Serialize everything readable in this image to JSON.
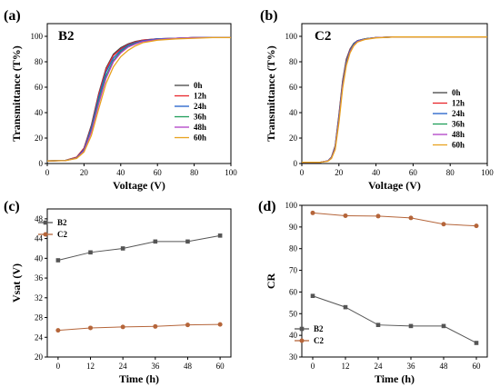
{
  "chart_data": [
    {
      "type": "line",
      "panel_label": "(a)",
      "title": "B2",
      "xlabel": "Voltage (V)",
      "ylabel": "Transmittance (T%)",
      "xlim": [
        0,
        100
      ],
      "ylim": [
        0,
        110
      ],
      "xticks": [
        0,
        20,
        40,
        60,
        80,
        100
      ],
      "yticks": [
        0,
        20,
        40,
        60,
        80,
        100
      ],
      "legend_position": "center-right",
      "series": [
        {
          "name": "0h",
          "color": "#444444",
          "x": [
            0,
            10,
            16,
            20,
            24,
            28,
            32,
            36,
            40,
            44,
            48,
            52,
            60,
            70,
            80,
            90,
            100
          ],
          "y": [
            2,
            2.5,
            5,
            12,
            30,
            55,
            75,
            86,
            91,
            94,
            96,
            97,
            98,
            98.5,
            99,
            99,
            99
          ]
        },
        {
          "name": "12h",
          "color": "#e8262b",
          "x": [
            0,
            10,
            16,
            20,
            24,
            28,
            32,
            36,
            40,
            44,
            48,
            52,
            60,
            70,
            80,
            90,
            100
          ],
          "y": [
            2,
            2.5,
            5,
            12,
            29,
            54,
            74,
            85,
            90,
            93.5,
            95.5,
            97,
            98,
            98.5,
            99,
            99,
            99
          ]
        },
        {
          "name": "24h",
          "color": "#1f5fc9",
          "x": [
            0,
            10,
            16,
            20,
            24,
            28,
            32,
            36,
            40,
            44,
            48,
            52,
            60,
            70,
            80,
            90,
            100
          ],
          "y": [
            2,
            2.4,
            4.5,
            11,
            28,
            52,
            72,
            83,
            89,
            93,
            95,
            96.5,
            98,
            98.5,
            99,
            99,
            99
          ]
        },
        {
          "name": "36h",
          "color": "#1f9e5a",
          "x": [
            0,
            10,
            16,
            20,
            24,
            28,
            32,
            36,
            40,
            44,
            48,
            52,
            60,
            70,
            80,
            90,
            100
          ],
          "y": [
            2,
            2.4,
            4.3,
            10,
            26,
            49,
            69,
            81,
            88,
            92,
            94.5,
            96,
            97.5,
            98.5,
            99,
            99,
            99
          ]
        },
        {
          "name": "48h",
          "color": "#b03fc7",
          "x": [
            0,
            10,
            16,
            20,
            24,
            28,
            32,
            36,
            40,
            44,
            48,
            52,
            60,
            70,
            80,
            90,
            100
          ],
          "y": [
            2,
            2.3,
            4.2,
            10,
            25,
            47,
            67,
            80,
            87,
            91.5,
            94,
            96,
            97.5,
            98.5,
            99,
            99,
            99
          ]
        },
        {
          "name": "60h",
          "color": "#e8a21e",
          "x": [
            0,
            10,
            16,
            20,
            24,
            28,
            32,
            36,
            40,
            44,
            48,
            52,
            60,
            70,
            80,
            90,
            100
          ],
          "y": [
            2,
            2.3,
            4,
            9,
            22,
            43,
            63,
            76,
            84,
            89,
            92.5,
            95,
            97,
            98,
            98.5,
            99,
            99
          ]
        }
      ]
    },
    {
      "type": "line",
      "panel_label": "(b)",
      "title": "C2",
      "xlabel": "Voltage (V)",
      "ylabel": "Transmittance (T%)",
      "xlim": [
        0,
        100
      ],
      "ylim": [
        0,
        110
      ],
      "xticks": [
        0,
        20,
        40,
        60,
        80,
        100
      ],
      "yticks": [
        0,
        20,
        40,
        60,
        80,
        100
      ],
      "legend_position": "center-right",
      "series": [
        {
          "name": "0h",
          "color": "#444444",
          "x": [
            0,
            10,
            14,
            16,
            18,
            20,
            22,
            24,
            26,
            28,
            30,
            34,
            40,
            50,
            60,
            80,
            100
          ],
          "y": [
            1,
            1,
            2,
            5,
            14,
            38,
            65,
            82,
            90,
            94.5,
            96.5,
            98,
            99,
            99.5,
            99.5,
            99.5,
            99.5
          ]
        },
        {
          "name": "12h",
          "color": "#e8262b",
          "x": [
            0,
            10,
            14,
            16,
            18,
            20,
            22,
            24,
            26,
            28,
            30,
            34,
            40,
            50,
            60,
            80,
            100
          ],
          "y": [
            1,
            1,
            2,
            5,
            13.5,
            37,
            64,
            81,
            89.5,
            94,
            96.5,
            98,
            99,
            99.5,
            99.5,
            99.5,
            99.5
          ]
        },
        {
          "name": "24h",
          "color": "#1f5fc9",
          "x": [
            0,
            10,
            14,
            16,
            18,
            20,
            22,
            24,
            26,
            28,
            30,
            34,
            40,
            50,
            60,
            80,
            100
          ],
          "y": [
            1,
            1,
            2,
            4.8,
            13,
            36,
            63,
            80,
            89,
            94,
            96.5,
            98,
            99,
            99.5,
            99.5,
            99.5,
            99.5
          ]
        },
        {
          "name": "36h",
          "color": "#1f9e5a",
          "x": [
            0,
            10,
            14,
            16,
            18,
            20,
            22,
            24,
            26,
            28,
            30,
            34,
            40,
            50,
            60,
            80,
            100
          ],
          "y": [
            1,
            1,
            2,
            4.6,
            12.5,
            35,
            62,
            79,
            88.5,
            93.5,
            96,
            98,
            99,
            99.5,
            99.5,
            99.5,
            99.5
          ]
        },
        {
          "name": "48h",
          "color": "#b03fc7",
          "x": [
            0,
            10,
            14,
            16,
            18,
            20,
            22,
            24,
            26,
            28,
            30,
            34,
            40,
            50,
            60,
            80,
            100
          ],
          "y": [
            1,
            1,
            2,
            4.4,
            12,
            34,
            61,
            78,
            88,
            93,
            96,
            97.8,
            99,
            99.5,
            99.5,
            99.5,
            99.5
          ]
        },
        {
          "name": "60h",
          "color": "#e8a21e",
          "x": [
            0,
            10,
            14,
            16,
            18,
            20,
            22,
            24,
            26,
            28,
            30,
            34,
            40,
            50,
            60,
            80,
            100
          ],
          "y": [
            1,
            1,
            1.8,
            4,
            11,
            32,
            59,
            77,
            87,
            92.5,
            95.5,
            97.5,
            98.8,
            99.5,
            99.5,
            99.5,
            99.5
          ]
        }
      ]
    },
    {
      "type": "line",
      "panel_label": "(c)",
      "title": "",
      "xlabel": "Time (h)",
      "ylabel": "Vsat (V)",
      "xlim": [
        -4,
        64
      ],
      "ylim": [
        20,
        50
      ],
      "xticks": [
        0,
        12,
        24,
        36,
        48,
        60
      ],
      "yticks": [
        20,
        24,
        28,
        32,
        36,
        40,
        44,
        48
      ],
      "legend_position": "top-left",
      "series": [
        {
          "name": "B2",
          "color": "#555555",
          "marker": "square",
          "x": [
            0,
            12,
            24,
            36,
            48,
            60
          ],
          "y": [
            39.6,
            41.2,
            42.0,
            43.4,
            43.4,
            44.6
          ]
        },
        {
          "name": "C2",
          "color": "#b5653a",
          "marker": "circle",
          "x": [
            0,
            12,
            24,
            36,
            48,
            60
          ],
          "y": [
            25.4,
            25.9,
            26.1,
            26.2,
            26.5,
            26.6
          ]
        }
      ]
    },
    {
      "type": "line",
      "panel_label": "(d)",
      "title": "",
      "xlabel": "Time (h)",
      "ylabel": "CR",
      "xlim": [
        -4,
        64
      ],
      "ylim": [
        30,
        100
      ],
      "xticks": [
        0,
        12,
        24,
        36,
        48,
        60
      ],
      "yticks": [
        30,
        40,
        50,
        60,
        70,
        80,
        90,
        100
      ],
      "legend_position": "bottom-left",
      "series": [
        {
          "name": "B2",
          "color": "#555555",
          "marker": "square",
          "x": [
            0,
            12,
            24,
            36,
            48,
            60
          ],
          "y": [
            58.2,
            53.0,
            44.8,
            44.3,
            44.3,
            36.5
          ]
        },
        {
          "name": "C2",
          "color": "#b5653a",
          "marker": "circle",
          "x": [
            0,
            12,
            24,
            36,
            48,
            60
          ],
          "y": [
            96.5,
            95.2,
            95.0,
            94.2,
            91.3,
            90.5
          ]
        }
      ]
    }
  ]
}
